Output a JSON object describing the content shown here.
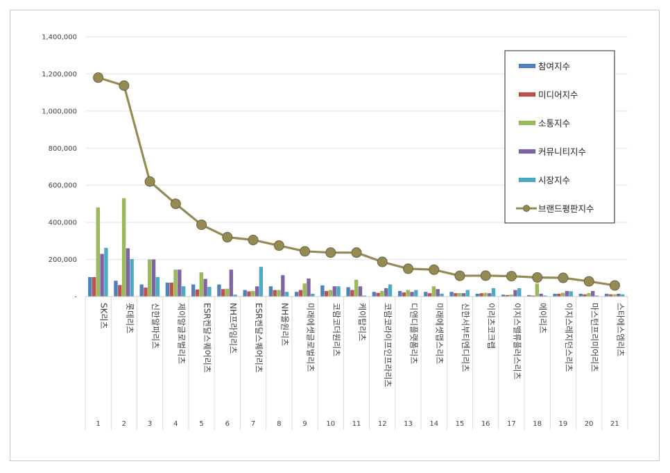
{
  "chart_data": {
    "type": "bar",
    "title": "",
    "xlabel": "",
    "ylabel": "",
    "ylim": [
      0,
      1400000
    ],
    "y_ticks": [
      "-",
      "200,000",
      "400,000",
      "600,000",
      "800,000",
      "1,000,000",
      "1,200,000",
      "1,400,000"
    ],
    "grid": true,
    "legend_position": "top-right",
    "rank_labels": [
      "1",
      "2",
      "3",
      "4",
      "5",
      "6",
      "7",
      "8",
      "9",
      "10",
      "11",
      "12",
      "13",
      "14",
      "15",
      "16",
      "17",
      "18",
      "19",
      "20",
      "21"
    ],
    "categories": [
      "SK리츠",
      "롯데리츠",
      "신한알파리츠",
      "제이알글로벌리츠",
      "ESR켄달스퀘어리츠",
      "NH프라임리츠",
      "ESR켄달스퀘어리츠",
      "NH올원리츠",
      "미래에셋글로벌리츠",
      "코람코더원리츠",
      "케이탑리츠",
      "코람코라이프인프라리츠",
      "디앤디플랫폼리츠",
      "미래에셋맵스리츠",
      "신한서부티엔디리츠",
      "이리츠코크렙",
      "이지스밸류플러스리츠",
      "에이리츠",
      "이지스레지던스리츠",
      "마스턴프리미어리츠",
      "스타에스엠리츠"
    ],
    "series": [
      {
        "name": "참여지수",
        "color": "#4f81bd",
        "values": [
          105000,
          85000,
          65000,
          75000,
          65000,
          65000,
          35000,
          55000,
          25000,
          60000,
          50000,
          25000,
          30000,
          25000,
          25000,
          15000,
          10000,
          8000,
          15000,
          15000,
          15000
        ]
      },
      {
        "name": "미디어지수",
        "color": "#c0504d",
        "values": [
          105000,
          62000,
          48000,
          75000,
          38000,
          40000,
          28000,
          35000,
          35000,
          30000,
          35000,
          20000,
          22000,
          18000,
          18000,
          18000,
          8000,
          5000,
          15000,
          12000,
          12000
        ]
      },
      {
        "name": "소통지수",
        "color": "#9bbb59",
        "values": [
          480000,
          530000,
          200000,
          145000,
          130000,
          42000,
          30000,
          35000,
          70000,
          35000,
          90000,
          30000,
          35000,
          55000,
          18000,
          20000,
          10000,
          70000,
          20000,
          18000,
          12000
        ]
      },
      {
        "name": "커뮤니티지수",
        "color": "#8064a2",
        "values": [
          230000,
          260000,
          200000,
          145000,
          95000,
          145000,
          55000,
          115000,
          97000,
          55000,
          55000,
          45000,
          25000,
          40000,
          18000,
          18000,
          35000,
          15000,
          30000,
          30000,
          15000
        ]
      },
      {
        "name": "시장지수",
        "color": "#4bacc6",
        "values": [
          262000,
          202000,
          105000,
          55000,
          52000,
          10000,
          160000,
          25000,
          15000,
          55000,
          5000,
          65000,
          35000,
          15000,
          35000,
          45000,
          45000,
          5000,
          28000,
          5000,
          12000
        ]
      },
      {
        "name": "브랜드평판지수",
        "type": "line",
        "color": "#948a54",
        "values": [
          1180000,
          1137000,
          620000,
          500000,
          387000,
          320000,
          305000,
          275000,
          244000,
          237000,
          237000,
          187000,
          150000,
          145000,
          112000,
          113000,
          110000,
          103000,
          101000,
          82000,
          60000
        ]
      }
    ]
  }
}
